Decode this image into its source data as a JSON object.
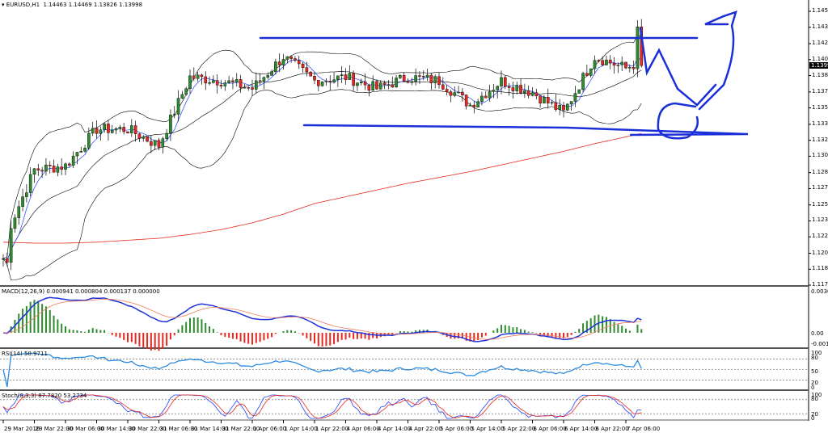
{
  "header": {
    "symbol": "EURUSD,H1",
    "open": "1.14463",
    "high": "1.14469",
    "low": "1.13826",
    "close": "1.13998"
  },
  "current_price": "1.13998",
  "macd": {
    "label": "MACD(12,26,9) 0.000941 0.000804 0.000137 0.000000",
    "ticks": [
      "0.00302",
      "0.00",
      "-0.00102"
    ]
  },
  "rsi": {
    "label": "RSI(14) 50.9711",
    "ticks": [
      "100",
      "80",
      "50",
      "20",
      "0"
    ]
  },
  "stoch": {
    "label": "Stoch(8,3,3) 87.7820 53.2734",
    "ticks": [
      "100",
      "80",
      "20",
      "0"
    ]
  },
  "colors": {
    "bull": "#2e8b2e",
    "bear": "#e8271e",
    "bands": "#000000",
    "fast_ma": "#2040ff",
    "slow_ma": "#e8271e",
    "annotation": "#1a2fd8",
    "macd_line": "#1e32d8",
    "signal": "#f07860",
    "rsi": "#2a8ae0"
  },
  "chart_data": {
    "type": "candlestick",
    "title": "EURUSD,H1",
    "price_ticks": [
      "1.14560",
      "1.14395",
      "1.14225",
      "1.14060",
      "1.13895",
      "1.13725",
      "1.13560",
      "1.13390",
      "1.13225",
      "1.13060",
      "1.12890",
      "1.12725",
      "1.12555",
      "1.12390",
      "1.12225",
      "1.12055",
      "1.11890",
      "1.11725"
    ],
    "ylim": [
      1.11725,
      1.1456
    ],
    "time_labels": [
      "29 Mar 2016",
      "29 Mar 22:00",
      "30 Mar 06:00",
      "30 Mar 14:00",
      "30 Mar 22:00",
      "31 Mar 06:00",
      "31 Mar 14:00",
      "31 Mar 22:00",
      "1 Apr 06:00",
      "1 Apr 14:00",
      "1 Apr 22:00",
      "4 Apr 06:00",
      "4 Apr 14:00",
      "4 Apr 22:00",
      "5 Apr 06:00",
      "5 Apr 14:00",
      "5 Apr 22:00",
      "6 Apr 06:00",
      "6 Apr 14:00",
      "6 Apr 22:00",
      "7 Apr 06:00"
    ],
    "closes_at_labels": [
      1.1217,
      1.1292,
      1.1296,
      1.1334,
      1.1334,
      1.1317,
      1.1388,
      1.1384,
      1.1376,
      1.1409,
      1.1384,
      1.1388,
      1.1376,
      1.1388,
      1.1384,
      1.1359,
      1.1384,
      1.1372,
      1.1351,
      1.1409,
      1.1397
    ],
    "last_close": 1.13998,
    "slow_ma_at_labels": [
      1.1217,
      1.1216,
      1.1216,
      1.1217,
      1.1219,
      1.1221,
      1.1225,
      1.123,
      1.1237,
      1.1246,
      1.1257,
      1.1264,
      1.1271,
      1.1278,
      1.1284,
      1.129,
      1.1297,
      1.1304,
      1.1311,
      1.1319,
      1.1326
    ],
    "bollinger": {
      "period": 20,
      "deviations": 2
    },
    "annotations": [
      "resistance line ~1.1431",
      "support line ~1.1330"
    ]
  }
}
